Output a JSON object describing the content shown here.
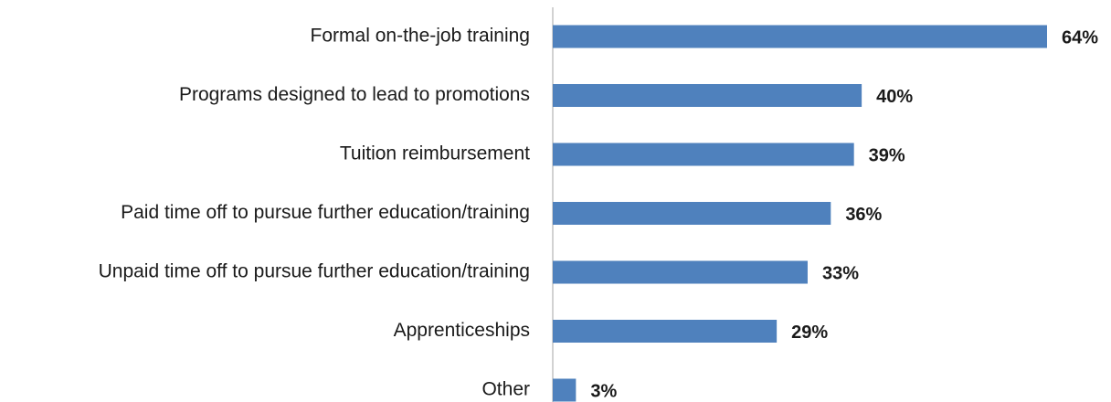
{
  "chart_data": {
    "type": "bar",
    "orientation": "horizontal",
    "categories": [
      "Formal on-the-job training",
      "Programs designed to lead to promotions",
      "Tuition reimbursement",
      "Paid time off to pursue further education/training",
      "Unpaid time off to pursue further education/training",
      "Apprenticeships",
      "Other"
    ],
    "values": [
      64,
      40,
      39,
      36,
      33,
      29,
      3
    ],
    "value_labels": [
      "64%",
      "40%",
      "39%",
      "36%",
      "33%",
      "29%",
      "3%"
    ],
    "color": "#4f81bd"
  }
}
